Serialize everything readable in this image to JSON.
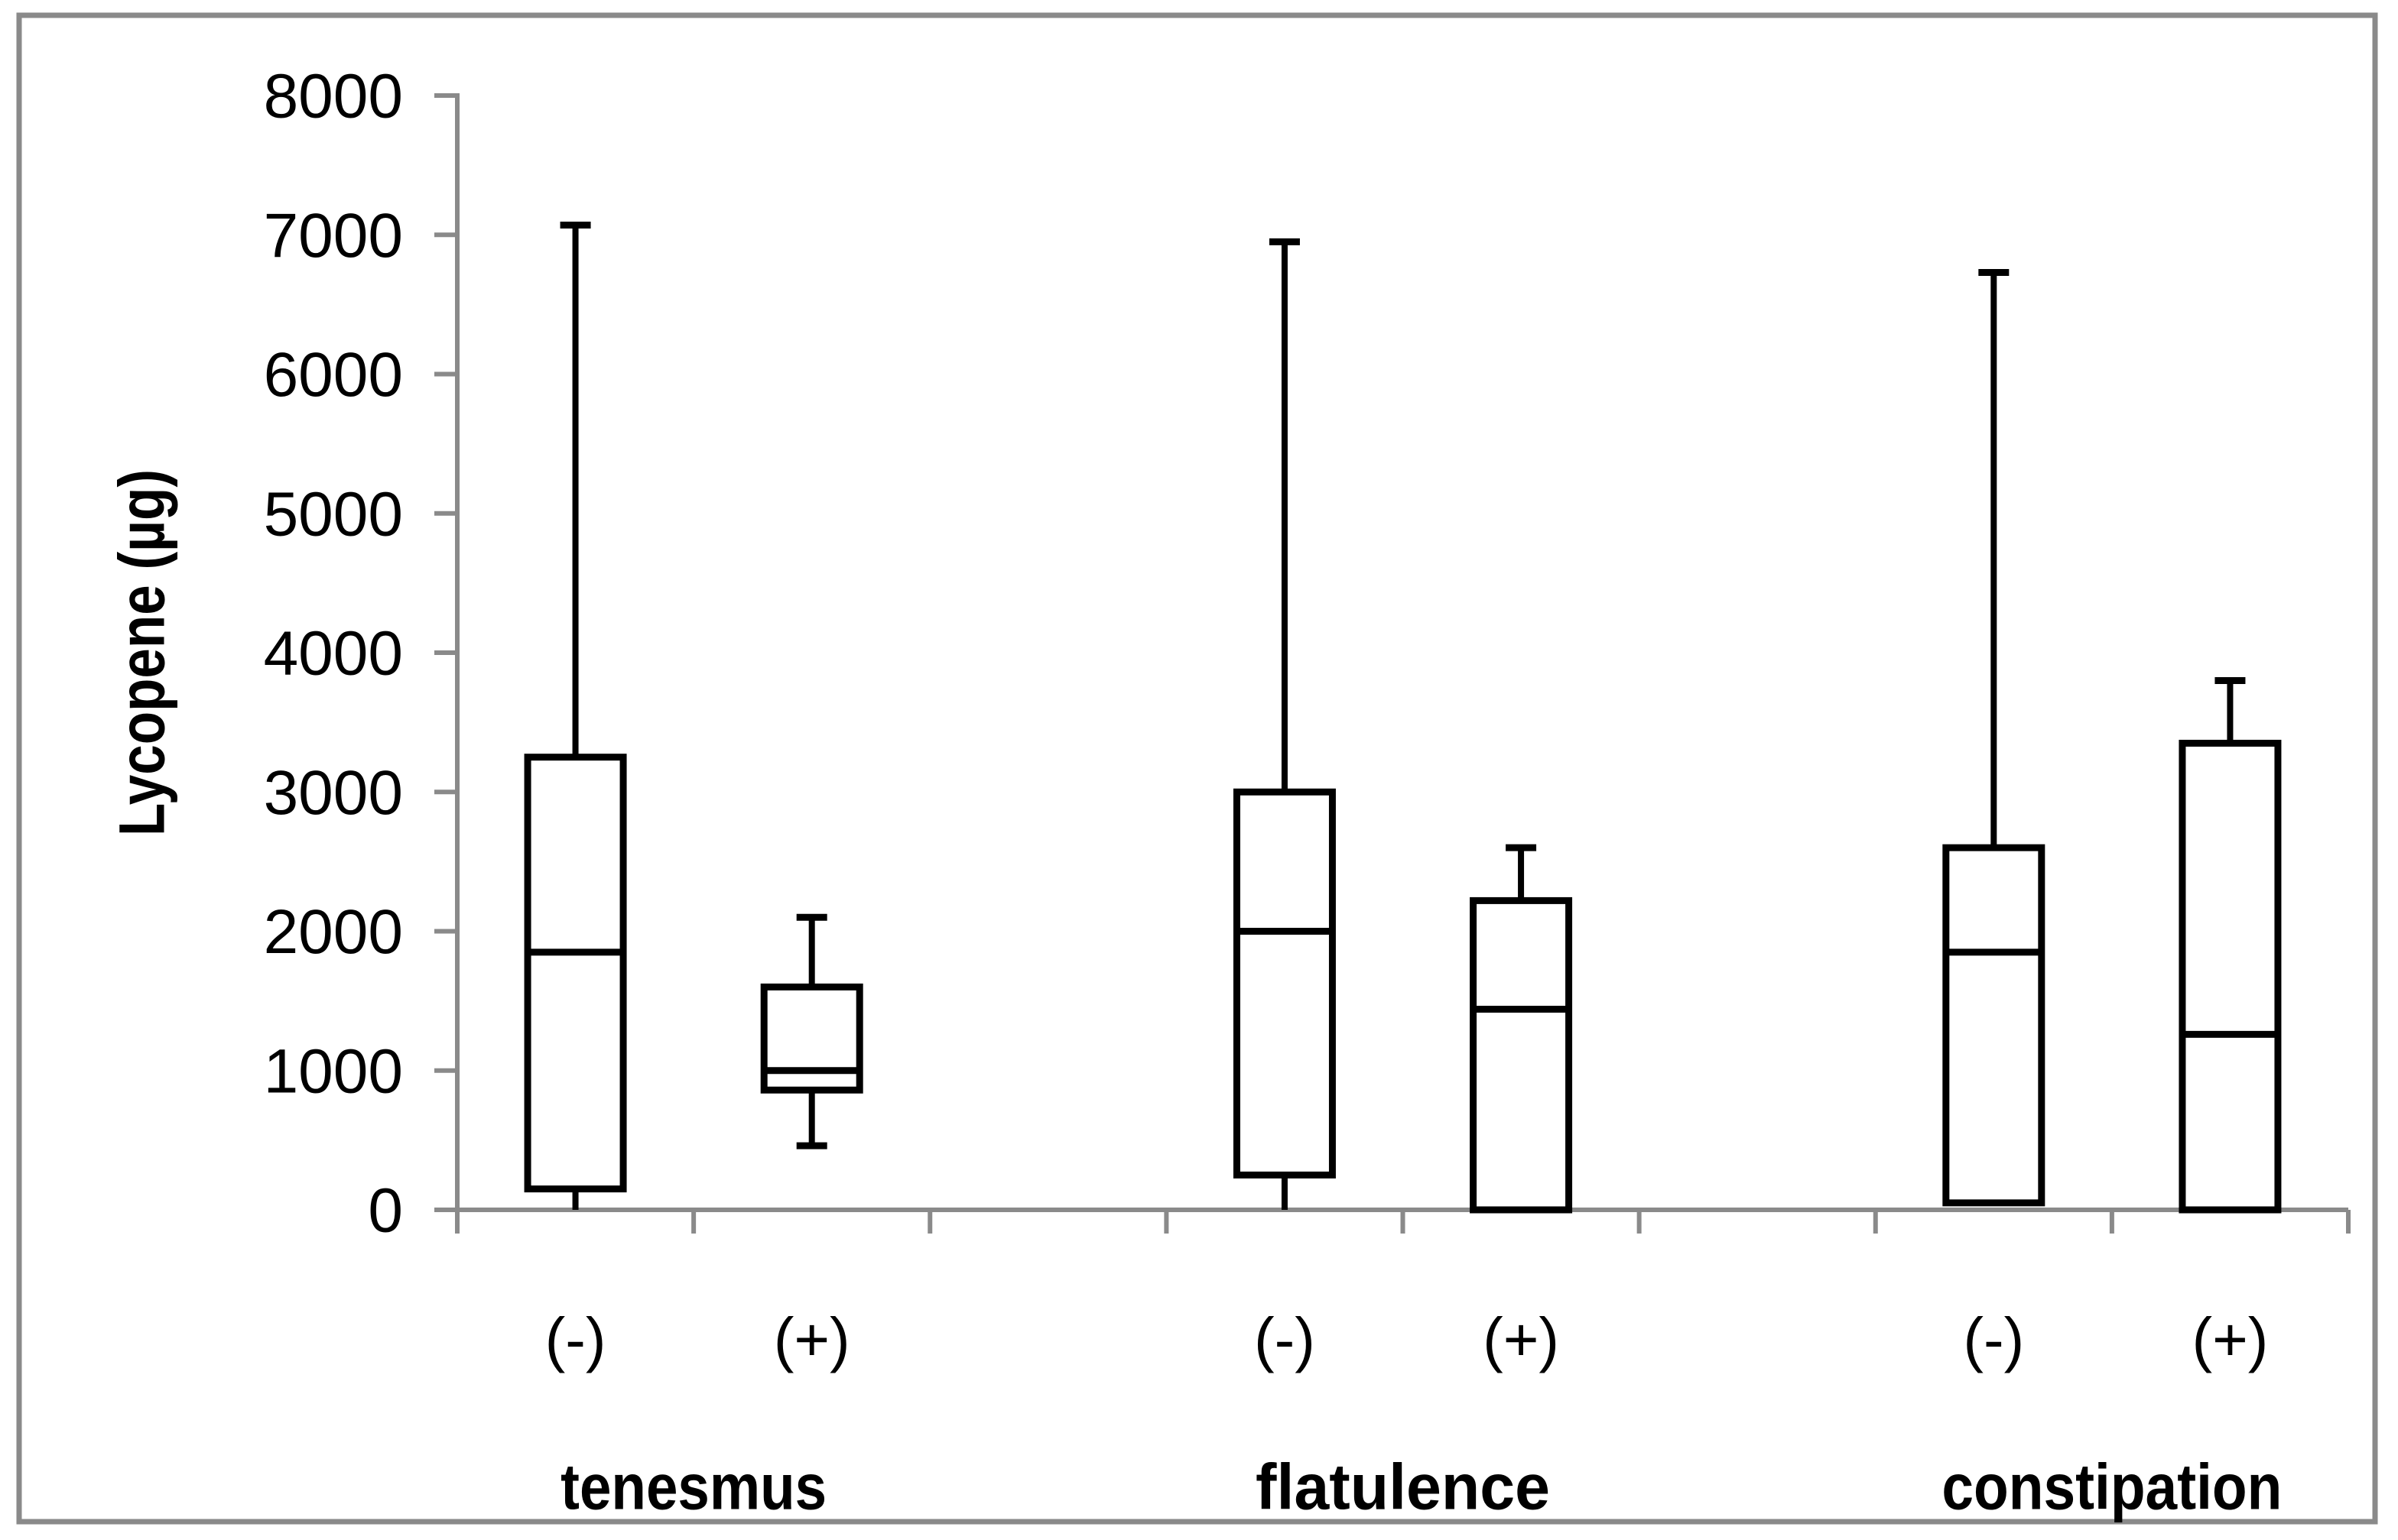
{
  "figure": {
    "background_color": "#FFFFFF",
    "border_color": "#8A8A8A",
    "axis_color": "#8A8A8A",
    "box_outline_color": "#000000",
    "text_color": "#000000"
  },
  "chart_data": {
    "type": "boxplot",
    "title": "",
    "xlabel": "",
    "ylabel": "Lycopene (µg)",
    "ylim": [
      0,
      8000
    ],
    "ytick_step": 1000,
    "ytick_labels": [
      "0",
      "1000",
      "2000",
      "3000",
      "4000",
      "5000",
      "6000",
      "7000",
      "8000"
    ],
    "grid": false,
    "legend": false,
    "groups": [
      {
        "label": "tenesmus",
        "boxes": [
          {
            "label": "(-)",
            "min": 0,
            "q1": 150,
            "median": 1850,
            "q3": 3250,
            "max": 7070,
            "lower_whisker": true,
            "lower_cap": false
          },
          {
            "label": "(+)",
            "min": 460,
            "q1": 860,
            "median": 1000,
            "q3": 1600,
            "max": 2100,
            "lower_whisker": true,
            "lower_cap": true
          }
        ]
      },
      {
        "label": "flatulence",
        "boxes": [
          {
            "label": "(-)",
            "min": 0,
            "q1": 250,
            "median": 2000,
            "q3": 3000,
            "max": 6950,
            "lower_whisker": true,
            "lower_cap": false
          },
          {
            "label": "(+)",
            "min": 0,
            "q1": 0,
            "median": 1440,
            "q3": 2220,
            "max": 2600,
            "lower_whisker": false,
            "lower_cap": false
          }
        ]
      },
      {
        "label": "constipation",
        "boxes": [
          {
            "label": "(-)",
            "min": 50,
            "q1": 50,
            "median": 1850,
            "q3": 2600,
            "max": 6730,
            "lower_whisker": false,
            "lower_cap": false
          },
          {
            "label": "(+)",
            "min": 0,
            "q1": 0,
            "median": 1260,
            "q3": 3350,
            "max": 3800,
            "lower_whisker": false,
            "lower_cap": false
          }
        ]
      }
    ]
  }
}
